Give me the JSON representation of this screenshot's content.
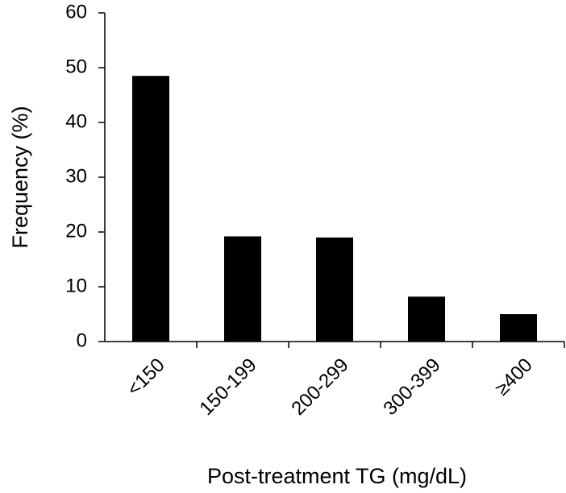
{
  "chart_data": {
    "type": "bar",
    "title": "",
    "xlabel": "Post-treatment TG (mg/dL)",
    "ylabel": "Frequency (%)",
    "categories": [
      "<150",
      "150-199",
      "200-299",
      "300-399",
      "≥400"
    ],
    "values": [
      48.5,
      19.2,
      19.0,
      8.2,
      5.0
    ],
    "ylim": [
      0,
      60
    ],
    "yticks": [
      "0",
      "10",
      "20",
      "30",
      "40",
      "50",
      "60"
    ],
    "grid": false,
    "legend": "none",
    "bar_color": "#000000"
  }
}
